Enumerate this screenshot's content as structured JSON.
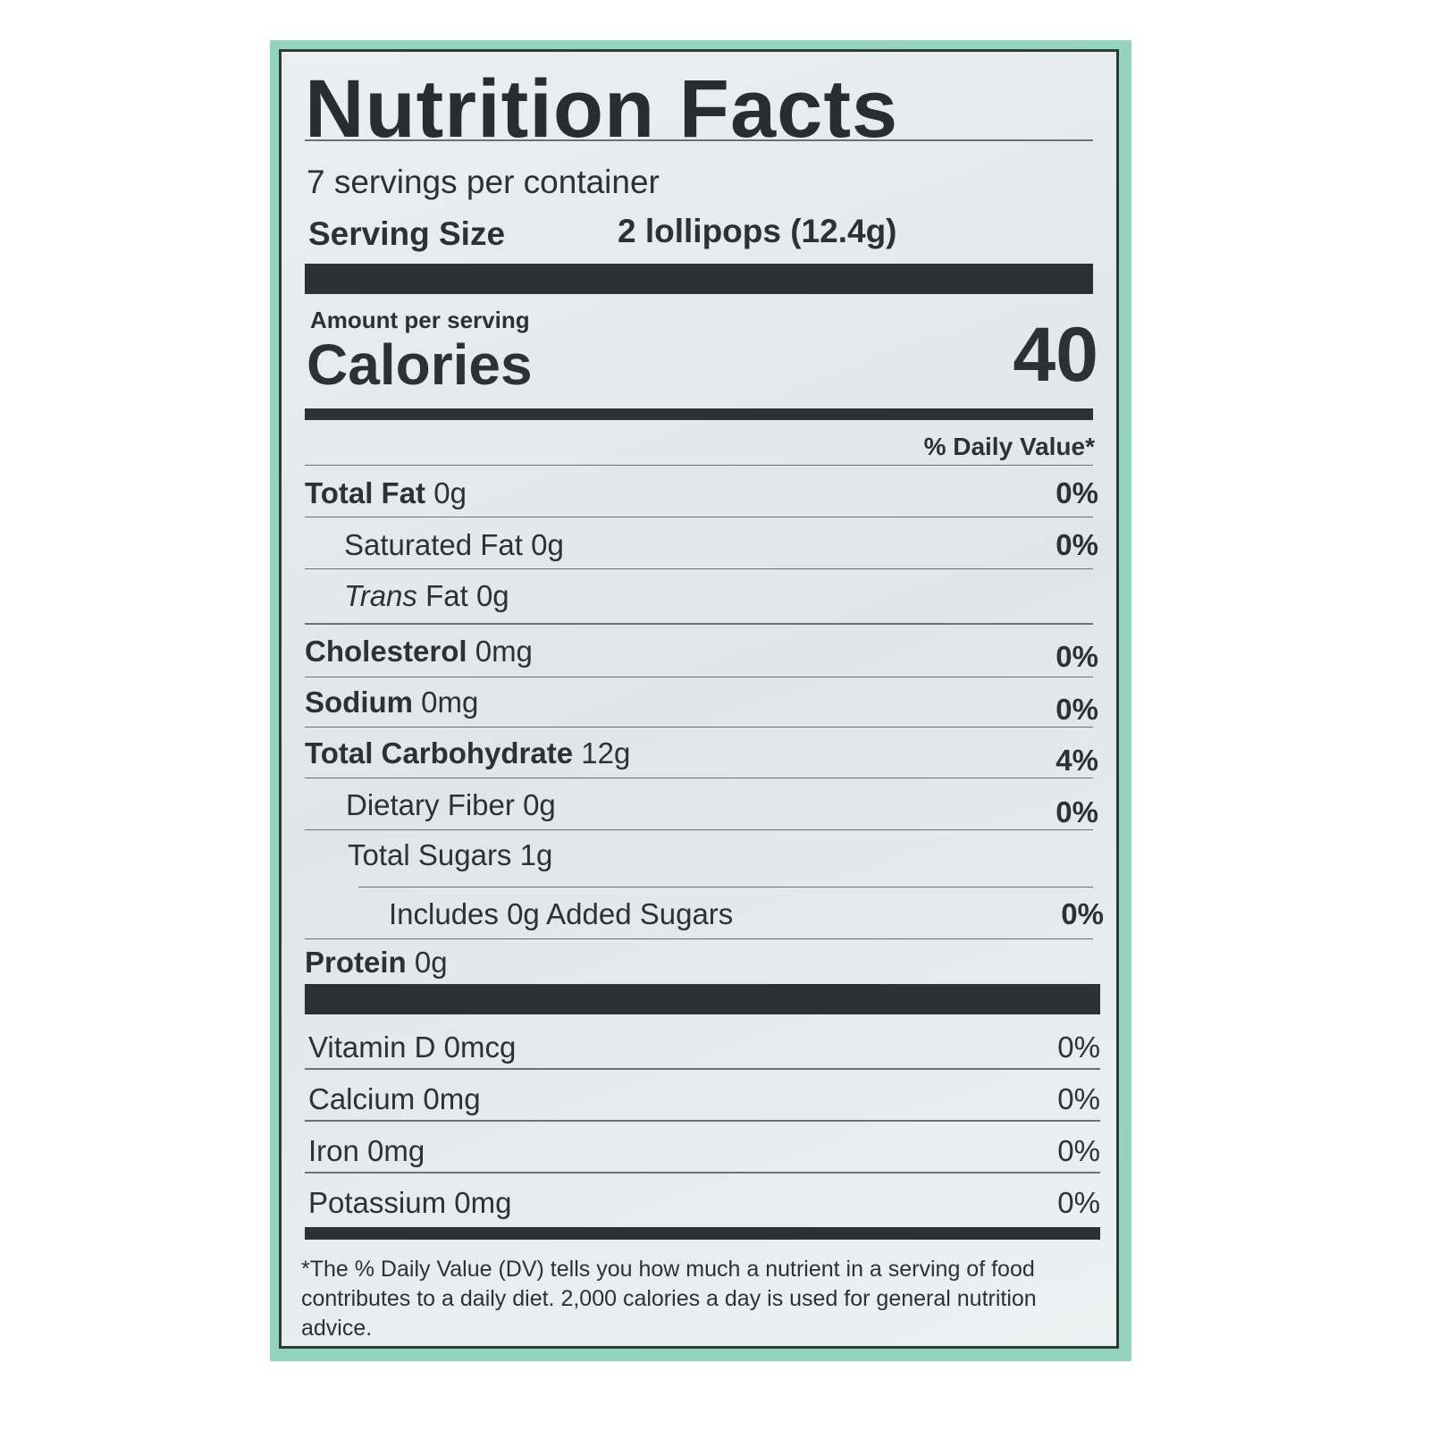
{
  "title": "Nutrition Facts",
  "servings_per_container": "7 servings per container",
  "serving_size_label": "Serving Size",
  "serving_size_value": "2 lollipops (12.4g)",
  "amount_per_serving": "Amount per serving",
  "calories_label": "Calories",
  "calories_value": "40",
  "daily_value_header": "% Daily Value*",
  "nutrients": [
    {
      "name": "Total Fat",
      "amount": "0g",
      "dv": "0%"
    },
    {
      "name": "Saturated Fat",
      "amount": "0g",
      "dv": "0%"
    },
    {
      "name_italic": "Trans",
      "name": "Fat",
      "amount": "0g",
      "dv": ""
    },
    {
      "name": "Cholesterol",
      "amount": "0mg",
      "dv": "0%"
    },
    {
      "name": "Sodium",
      "amount": "0mg",
      "dv": "0%"
    },
    {
      "name": "Total Carbohydrate",
      "amount": "12g",
      "dv": "4%"
    },
    {
      "name": "Dietary Fiber",
      "amount": "0g",
      "dv": "0%"
    },
    {
      "name": "Total Sugars",
      "amount": "1g",
      "dv": ""
    },
    {
      "name": "Includes 0g Added Sugars",
      "amount": "",
      "dv": "0%"
    },
    {
      "name": "Protein",
      "amount": "0g",
      "dv": ""
    }
  ],
  "vitamins": [
    {
      "name": "Vitamin D",
      "amount": "0mcg",
      "dv": "0%"
    },
    {
      "name": "Calcium",
      "amount": "0mg",
      "dv": "0%"
    },
    {
      "name": "Iron",
      "amount": "0mg",
      "dv": "0%"
    },
    {
      "name": "Potassium",
      "amount": "0mg",
      "dv": "0%"
    }
  ],
  "footnote": "*The % Daily Value (DV) tells you how much a nutrient in a serving of food contributes to a daily diet. 2,000 calories a day is used for general nutrition advice.",
  "colors": {
    "package_green": "#94d3bd",
    "ink": "#2e3032",
    "label_background": "#e8eaec"
  }
}
